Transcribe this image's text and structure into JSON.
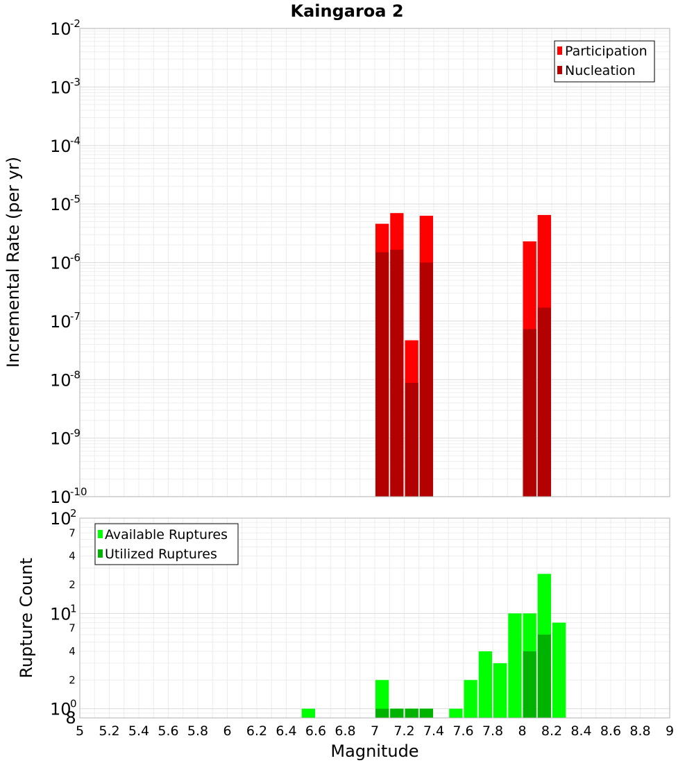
{
  "chart_data": [
    {
      "type": "bar",
      "title": "Kaingaroa 2",
      "xlabel": "",
      "ylabel": "Incremental Rate (per yr)",
      "yscale": "log",
      "ylim": [
        1e-10,
        0.01
      ],
      "xlim": [
        5,
        9
      ],
      "bin_width": 0.1,
      "grid": true,
      "legend_placement": "top-right",
      "y_tick_labels": [
        {
          "base": "10",
          "exp": "-10"
        },
        {
          "base": "10",
          "exp": "-9"
        },
        {
          "base": "10",
          "exp": "-8"
        },
        {
          "base": "10",
          "exp": "-7"
        },
        {
          "base": "10",
          "exp": "-6"
        },
        {
          "base": "10",
          "exp": "-5"
        },
        {
          "base": "10",
          "exp": "-4"
        },
        {
          "base": "10",
          "exp": "-3"
        },
        {
          "base": "10",
          "exp": "-2"
        }
      ],
      "series": [
        {
          "name": "Participation",
          "color": "#ff0000",
          "x": [
            7.05,
            7.15,
            7.25,
            7.35,
            8.05,
            8.15
          ],
          "values": [
            4.6e-06,
            7e-06,
            4.7e-08,
            6.3e-06,
            2.3e-06,
            6.5e-06
          ]
        },
        {
          "name": "Nucleation",
          "color": "#b30000",
          "x": [
            7.05,
            7.15,
            7.25,
            7.35,
            8.05,
            8.15
          ],
          "values": [
            1.5e-06,
            1.65e-06,
            8.8e-09,
            1e-06,
            7.3e-08,
            1.7e-07
          ]
        }
      ]
    },
    {
      "type": "bar",
      "title": "",
      "xlabel": "Magnitude",
      "ylabel": "Rupture Count",
      "yscale": "log",
      "ylim": [
        0.8,
        100
      ],
      "xlim": [
        5,
        9
      ],
      "bin_width": 0.1,
      "grid": true,
      "legend_placement": "top-left",
      "x_tick_labels": [
        "5",
        "5.2",
        "5.4",
        "5.6",
        "5.8",
        "6",
        "6.2",
        "6.4",
        "6.6",
        "6.8",
        "7",
        "7.2",
        "7.4",
        "7.6",
        "7.8",
        "8",
        "8.2",
        "8.4",
        "8.6",
        "8.8",
        "9"
      ],
      "y_major_labels": [
        {
          "value": 1,
          "base": "10",
          "exp": "0"
        },
        {
          "value": 10,
          "base": "10",
          "exp": "1"
        },
        {
          "value": 100,
          "base": "10",
          "exp": "2"
        }
      ],
      "y_minor_labels": [
        {
          "value": 0.8,
          "label": "8"
        },
        {
          "value": 2,
          "label": "2"
        },
        {
          "value": 4,
          "label": "4"
        },
        {
          "value": 7,
          "label": "7"
        },
        {
          "value": 20,
          "label": "2"
        },
        {
          "value": 40,
          "label": "4"
        },
        {
          "value": 70,
          "label": "7"
        }
      ],
      "series": [
        {
          "name": "Available Ruptures",
          "color": "#00ff00",
          "x": [
            6.55,
            7.05,
            7.15,
            7.25,
            7.35,
            7.55,
            7.65,
            7.75,
            7.85,
            7.95,
            8.05,
            8.15,
            8.25
          ],
          "values": [
            1,
            2,
            1,
            1,
            1,
            1,
            2,
            4,
            3,
            10,
            10,
            26,
            8
          ]
        },
        {
          "name": "Utilized Ruptures",
          "color": "#00b300",
          "x": [
            7.05,
            7.15,
            7.25,
            7.35,
            8.05,
            8.15
          ],
          "values": [
            1,
            1,
            1,
            1,
            4,
            6
          ]
        }
      ]
    }
  ]
}
